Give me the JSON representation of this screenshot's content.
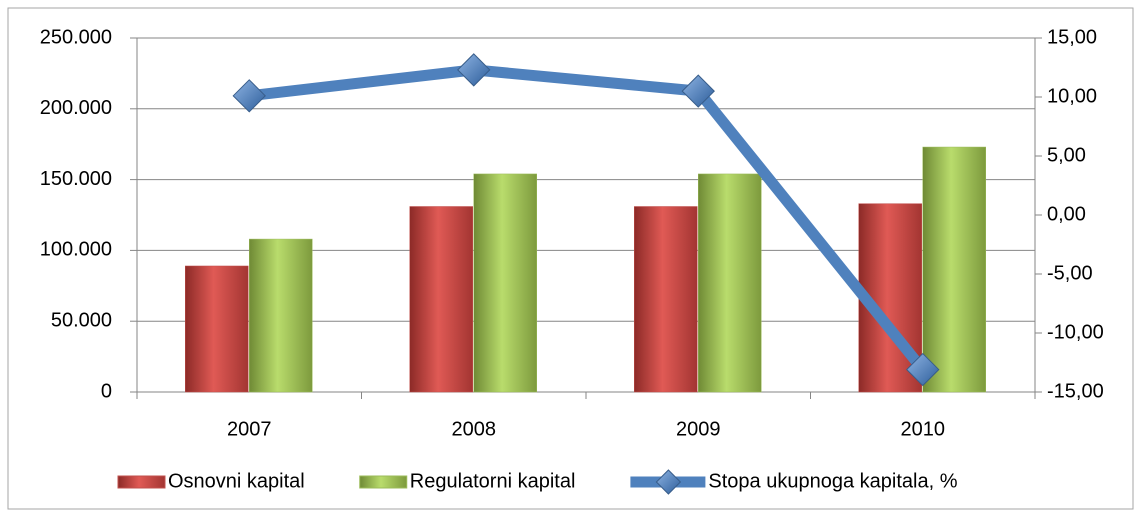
{
  "chart_data": {
    "type": "bar",
    "categories": [
      "2007",
      "2008",
      "2009",
      "2010"
    ],
    "series": [
      {
        "name": "Osnovni kapital",
        "color": "#c0504d",
        "values": [
          89000,
          131000,
          131000,
          133000
        ]
      },
      {
        "name": "Regulatorni kapital",
        "color": "#9bbb59",
        "values": [
          108000,
          154000,
          154000,
          173000
        ]
      },
      {
        "name": "Stopa ukupnoga kapitala, %",
        "color": "#4f81bd",
        "type": "line",
        "axis": "y2",
        "values": [
          10.1,
          12.3,
          10.5,
          -13.1
        ]
      }
    ],
    "ylim": [
      0,
      250000
    ],
    "yticks": [
      0,
      {
        "value": 50000,
        "label": "50.000"
      },
      {
        "value": 100000,
        "label": "100.000"
      },
      {
        "value": 150000,
        "label": "150.000"
      },
      {
        "value": 200000,
        "label": "200.000"
      },
      {
        "value": 250000,
        "label": "250.000"
      }
    ],
    "y2lim": [
      -15,
      15
    ],
    "y2ticks": [
      {
        "value": -15,
        "label": "-15,00"
      },
      {
        "value": -10,
        "label": "-10,00"
      },
      {
        "value": -5,
        "label": "-5,00"
      },
      {
        "value": 0,
        "label": "0,00"
      },
      {
        "value": 5,
        "label": "5,00"
      },
      {
        "value": 10,
        "label": "10,00"
      },
      {
        "value": 15,
        "label": "15,00"
      }
    ],
    "grid": true,
    "legend": "bottom"
  }
}
